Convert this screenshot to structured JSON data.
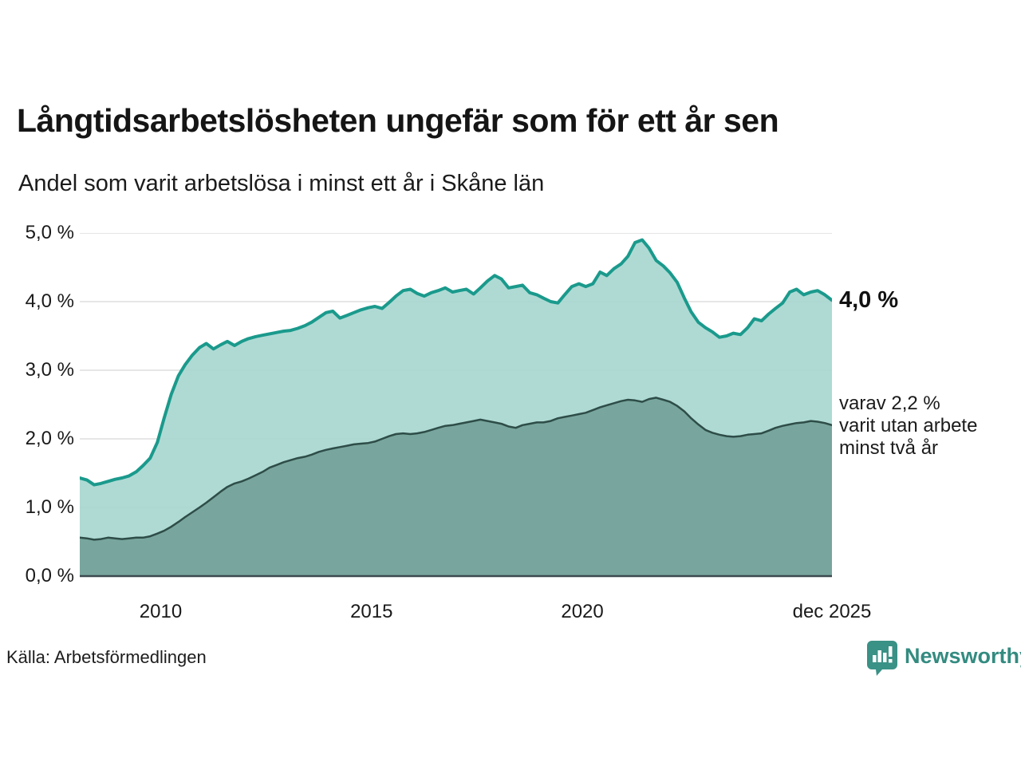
{
  "header": {
    "title": "Långtidsarbetslösheten ungefär som för ett år sen",
    "subtitle": "Andel som varit arbetslösa i minst ett år i Skåne län"
  },
  "annotations": {
    "latest_total": "4,0 %",
    "secondary_lines": [
      "varav 2,2 %",
      "varit utan arbete",
      "minst två år"
    ]
  },
  "footer": {
    "source": "Källa: Arbetsförmedlingen",
    "brand": "Newsworthy",
    "brand_icon": "newsworthy-pin-barchart-icon"
  },
  "colors": {
    "accent_teal": "#1a9a8c",
    "light_fill": "#a6d6cf",
    "dark_fill": "#78a69e",
    "dark_line": "#2e4d48",
    "gridline": "#dedede",
    "baseline": "#3c4a50",
    "brand_teal": "#338b80",
    "text": "#1a1a1a"
  },
  "chart_data": {
    "type": "area",
    "title": "Långtidsarbetslösheten ungefär som för ett år sen",
    "subtitle": "Andel som varit arbetslösa i minst ett år i Skåne län",
    "xlabel": "",
    "ylabel": "",
    "x_unit": "year (fractional, monthly data)",
    "y_unit": "percent",
    "xlim": [
      2008.08,
      2025.92
    ],
    "ylim": [
      0,
      5
    ],
    "grid": "horizontal",
    "legend_position": "right-annotations",
    "yticks": [
      {
        "value": 5,
        "label": "5,0 %"
      },
      {
        "value": 4,
        "label": "4,0 %"
      },
      {
        "value": 3,
        "label": "3,0 %"
      },
      {
        "value": 2,
        "label": "2,0 %"
      },
      {
        "value": 1,
        "label": "1,0 %"
      },
      {
        "value": 0,
        "label": "0,0 %"
      }
    ],
    "xticks": [
      {
        "value": 2010,
        "label": "2010"
      },
      {
        "value": 2015,
        "label": "2015"
      },
      {
        "value": 2020,
        "label": "2020"
      },
      {
        "value": 2025.92,
        "label": "dec 2025"
      }
    ],
    "series": [
      {
        "name": "Andel som varit arbetslösa i minst ett år",
        "last_value_label": "4,0 %",
        "line_color": "#1a9a8c",
        "fill_color": "#a6d6cf",
        "line_width": 4,
        "values": [
          [
            2008.08,
            1.43
          ],
          [
            2008.25,
            1.4
          ],
          [
            2008.42,
            1.33
          ],
          [
            2008.58,
            1.35
          ],
          [
            2008.75,
            1.38
          ],
          [
            2008.92,
            1.41
          ],
          [
            2009.08,
            1.43
          ],
          [
            2009.25,
            1.46
          ],
          [
            2009.42,
            1.52
          ],
          [
            2009.58,
            1.61
          ],
          [
            2009.75,
            1.72
          ],
          [
            2009.92,
            1.95
          ],
          [
            2010.08,
            2.3
          ],
          [
            2010.25,
            2.65
          ],
          [
            2010.42,
            2.92
          ],
          [
            2010.58,
            3.08
          ],
          [
            2010.75,
            3.22
          ],
          [
            2010.92,
            3.33
          ],
          [
            2011.08,
            3.39
          ],
          [
            2011.25,
            3.31
          ],
          [
            2011.42,
            3.37
          ],
          [
            2011.58,
            3.42
          ],
          [
            2011.75,
            3.36
          ],
          [
            2011.92,
            3.42
          ],
          [
            2012.08,
            3.46
          ],
          [
            2012.25,
            3.49
          ],
          [
            2012.42,
            3.51
          ],
          [
            2012.58,
            3.53
          ],
          [
            2012.75,
            3.55
          ],
          [
            2012.92,
            3.57
          ],
          [
            2013.08,
            3.58
          ],
          [
            2013.25,
            3.61
          ],
          [
            2013.42,
            3.65
          ],
          [
            2013.58,
            3.7
          ],
          [
            2013.75,
            3.77
          ],
          [
            2013.92,
            3.84
          ],
          [
            2014.08,
            3.86
          ],
          [
            2014.25,
            3.76
          ],
          [
            2014.42,
            3.8
          ],
          [
            2014.58,
            3.84
          ],
          [
            2014.75,
            3.88
          ],
          [
            2014.92,
            3.91
          ],
          [
            2015.08,
            3.93
          ],
          [
            2015.25,
            3.9
          ],
          [
            2015.42,
            3.99
          ],
          [
            2015.58,
            4.08
          ],
          [
            2015.75,
            4.16
          ],
          [
            2015.92,
            4.18
          ],
          [
            2016.08,
            4.12
          ],
          [
            2016.25,
            4.08
          ],
          [
            2016.42,
            4.13
          ],
          [
            2016.58,
            4.16
          ],
          [
            2016.75,
            4.2
          ],
          [
            2016.92,
            4.14
          ],
          [
            2017.08,
            4.16
          ],
          [
            2017.25,
            4.18
          ],
          [
            2017.42,
            4.11
          ],
          [
            2017.58,
            4.2
          ],
          [
            2017.75,
            4.3
          ],
          [
            2017.92,
            4.38
          ],
          [
            2018.08,
            4.33
          ],
          [
            2018.25,
            4.2
          ],
          [
            2018.42,
            4.22
          ],
          [
            2018.58,
            4.24
          ],
          [
            2018.75,
            4.13
          ],
          [
            2018.92,
            4.1
          ],
          [
            2019.08,
            4.05
          ],
          [
            2019.25,
            4.0
          ],
          [
            2019.42,
            3.98
          ],
          [
            2019.58,
            4.1
          ],
          [
            2019.75,
            4.22
          ],
          [
            2019.92,
            4.26
          ],
          [
            2020.08,
            4.22
          ],
          [
            2020.25,
            4.26
          ],
          [
            2020.42,
            4.43
          ],
          [
            2020.58,
            4.38
          ],
          [
            2020.75,
            4.48
          ],
          [
            2020.92,
            4.55
          ],
          [
            2021.08,
            4.66
          ],
          [
            2021.25,
            4.86
          ],
          [
            2021.42,
            4.9
          ],
          [
            2021.58,
            4.78
          ],
          [
            2021.75,
            4.6
          ],
          [
            2021.92,
            4.52
          ],
          [
            2022.08,
            4.42
          ],
          [
            2022.25,
            4.28
          ],
          [
            2022.42,
            4.05
          ],
          [
            2022.58,
            3.85
          ],
          [
            2022.75,
            3.7
          ],
          [
            2022.92,
            3.62
          ],
          [
            2023.08,
            3.56
          ],
          [
            2023.25,
            3.48
          ],
          [
            2023.42,
            3.5
          ],
          [
            2023.58,
            3.54
          ],
          [
            2023.75,
            3.52
          ],
          [
            2023.92,
            3.62
          ],
          [
            2024.08,
            3.75
          ],
          [
            2024.25,
            3.72
          ],
          [
            2024.42,
            3.82
          ],
          [
            2024.58,
            3.9
          ],
          [
            2024.75,
            3.98
          ],
          [
            2024.92,
            4.14
          ],
          [
            2025.08,
            4.18
          ],
          [
            2025.25,
            4.1
          ],
          [
            2025.42,
            4.14
          ],
          [
            2025.58,
            4.16
          ],
          [
            2025.75,
            4.1
          ],
          [
            2025.92,
            4.02
          ]
        ]
      },
      {
        "name": "varav varit utan arbete minst två år",
        "last_value_label": "2,2 %",
        "line_color": "#2e4d48",
        "fill_color": "#78a69e",
        "line_width": 2.5,
        "values": [
          [
            2008.08,
            0.56
          ],
          [
            2008.25,
            0.55
          ],
          [
            2008.42,
            0.53
          ],
          [
            2008.58,
            0.54
          ],
          [
            2008.75,
            0.56
          ],
          [
            2008.92,
            0.55
          ],
          [
            2009.08,
            0.54
          ],
          [
            2009.25,
            0.55
          ],
          [
            2009.42,
            0.56
          ],
          [
            2009.58,
            0.56
          ],
          [
            2009.75,
            0.58
          ],
          [
            2009.92,
            0.62
          ],
          [
            2010.08,
            0.66
          ],
          [
            2010.25,
            0.72
          ],
          [
            2010.42,
            0.79
          ],
          [
            2010.58,
            0.86
          ],
          [
            2010.75,
            0.93
          ],
          [
            2010.92,
            1.0
          ],
          [
            2011.08,
            1.07
          ],
          [
            2011.25,
            1.15
          ],
          [
            2011.42,
            1.23
          ],
          [
            2011.58,
            1.3
          ],
          [
            2011.75,
            1.35
          ],
          [
            2011.92,
            1.38
          ],
          [
            2012.08,
            1.42
          ],
          [
            2012.25,
            1.47
          ],
          [
            2012.42,
            1.52
          ],
          [
            2012.58,
            1.58
          ],
          [
            2012.75,
            1.62
          ],
          [
            2012.92,
            1.66
          ],
          [
            2013.08,
            1.69
          ],
          [
            2013.25,
            1.72
          ],
          [
            2013.42,
            1.74
          ],
          [
            2013.58,
            1.77
          ],
          [
            2013.75,
            1.81
          ],
          [
            2013.92,
            1.84
          ],
          [
            2014.08,
            1.86
          ],
          [
            2014.25,
            1.88
          ],
          [
            2014.42,
            1.9
          ],
          [
            2014.58,
            1.92
          ],
          [
            2014.75,
            1.93
          ],
          [
            2014.92,
            1.94
          ],
          [
            2015.08,
            1.96
          ],
          [
            2015.25,
            2.0
          ],
          [
            2015.42,
            2.04
          ],
          [
            2015.58,
            2.07
          ],
          [
            2015.75,
            2.08
          ],
          [
            2015.92,
            2.07
          ],
          [
            2016.08,
            2.08
          ],
          [
            2016.25,
            2.1
          ],
          [
            2016.42,
            2.13
          ],
          [
            2016.58,
            2.16
          ],
          [
            2016.75,
            2.19
          ],
          [
            2016.92,
            2.2
          ],
          [
            2017.08,
            2.22
          ],
          [
            2017.25,
            2.24
          ],
          [
            2017.42,
            2.26
          ],
          [
            2017.58,
            2.28
          ],
          [
            2017.75,
            2.26
          ],
          [
            2017.92,
            2.24
          ],
          [
            2018.08,
            2.22
          ],
          [
            2018.25,
            2.18
          ],
          [
            2018.42,
            2.16
          ],
          [
            2018.58,
            2.2
          ],
          [
            2018.75,
            2.22
          ],
          [
            2018.92,
            2.24
          ],
          [
            2019.08,
            2.24
          ],
          [
            2019.25,
            2.26
          ],
          [
            2019.42,
            2.3
          ],
          [
            2019.58,
            2.32
          ],
          [
            2019.75,
            2.34
          ],
          [
            2019.92,
            2.36
          ],
          [
            2020.08,
            2.38
          ],
          [
            2020.25,
            2.42
          ],
          [
            2020.42,
            2.46
          ],
          [
            2020.58,
            2.49
          ],
          [
            2020.75,
            2.52
          ],
          [
            2020.92,
            2.55
          ],
          [
            2021.08,
            2.57
          ],
          [
            2021.25,
            2.56
          ],
          [
            2021.42,
            2.54
          ],
          [
            2021.58,
            2.58
          ],
          [
            2021.75,
            2.6
          ],
          [
            2021.92,
            2.57
          ],
          [
            2022.08,
            2.54
          ],
          [
            2022.25,
            2.48
          ],
          [
            2022.42,
            2.4
          ],
          [
            2022.58,
            2.3
          ],
          [
            2022.75,
            2.21
          ],
          [
            2022.92,
            2.13
          ],
          [
            2023.08,
            2.09
          ],
          [
            2023.25,
            2.06
          ],
          [
            2023.42,
            2.04
          ],
          [
            2023.58,
            2.03
          ],
          [
            2023.75,
            2.04
          ],
          [
            2023.92,
            2.06
          ],
          [
            2024.08,
            2.07
          ],
          [
            2024.25,
            2.08
          ],
          [
            2024.42,
            2.12
          ],
          [
            2024.58,
            2.16
          ],
          [
            2024.75,
            2.19
          ],
          [
            2024.92,
            2.21
          ],
          [
            2025.08,
            2.23
          ],
          [
            2025.25,
            2.24
          ],
          [
            2025.42,
            2.26
          ],
          [
            2025.58,
            2.25
          ],
          [
            2025.75,
            2.23
          ],
          [
            2025.92,
            2.2
          ]
        ]
      }
    ]
  }
}
